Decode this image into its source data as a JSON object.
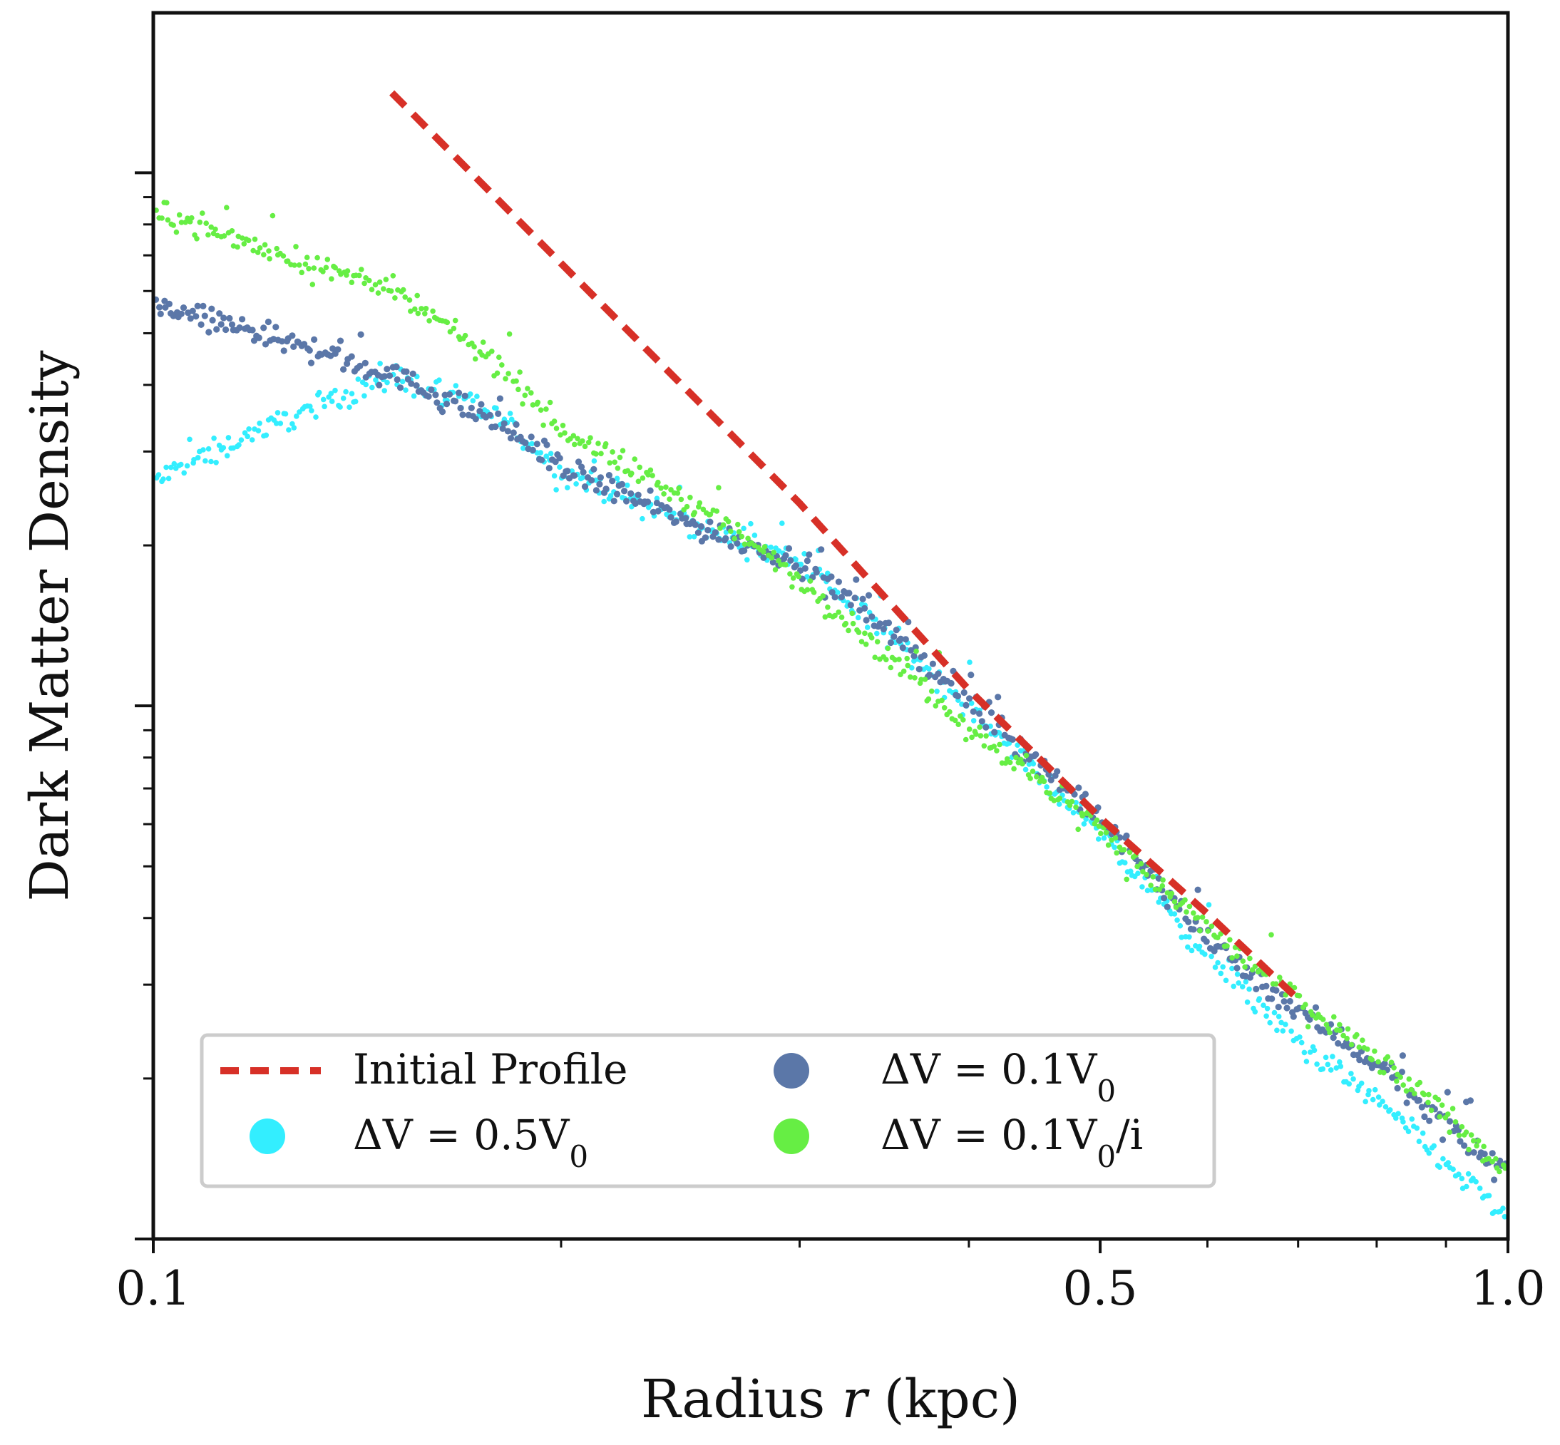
{
  "chart_data": {
    "type": "scatter",
    "title": "",
    "xlabel_text": "Radius ",
    "xlabel_var": "r",
    "xlabel_unit": " (kpc)",
    "ylabel": "Dark Matter Density",
    "x_scale": "log",
    "y_scale": "log",
    "xlim": [
      0.1,
      1.0
    ],
    "ylim_decades": [
      0,
      2.3
    ],
    "x_tick_labels": [
      {
        "value": 0.1,
        "label": "0.1"
      },
      {
        "value": 0.5,
        "label": "0.5"
      },
      {
        "value": 1.0,
        "label": "1.0"
      }
    ],
    "x_minor_ticks": [
      0.2,
      0.3,
      0.4,
      0.6,
      0.7,
      0.8,
      0.9
    ],
    "y_major_ticks_decades": [
      0,
      1,
      2
    ],
    "legend": {
      "position": "lower-left",
      "columns": 2
    },
    "series": [
      {
        "name": "Initial Profile",
        "kind": "dashed-line",
        "color": "#d73027",
        "x": [
          0.15,
          0.2,
          0.3,
          0.4,
          0.5,
          0.6,
          0.7
        ],
        "y_decades": [
          2.15,
          1.83,
          1.38,
          1.03,
          0.79,
          0.61,
          0.45
        ]
      },
      {
        "name": "ΔV = 0.5V₀",
        "label_parts": [
          "ΔV = 0.5V",
          "0",
          ""
        ],
        "kind": "scatter",
        "color": "#33eeff",
        "x": [
          0.1,
          0.12,
          0.15,
          0.18,
          0.2,
          0.25,
          0.3,
          0.35,
          0.4,
          0.5,
          0.6,
          0.7,
          0.8,
          0.9,
          1.0
        ],
        "y_decades": [
          1.42,
          1.52,
          1.62,
          1.54,
          1.44,
          1.34,
          1.27,
          1.13,
          1.0,
          0.76,
          0.53,
          0.37,
          0.26,
          0.14,
          0.04
        ]
      },
      {
        "name": "ΔV = 0.1V₀",
        "label_parts": [
          "ΔV = 0.1V",
          "0",
          ""
        ],
        "kind": "scatter",
        "color": "#5b77a8",
        "x": [
          0.1,
          0.12,
          0.15,
          0.18,
          0.2,
          0.25,
          0.3,
          0.35,
          0.4,
          0.5,
          0.6,
          0.7,
          0.8,
          0.9,
          1.0
        ],
        "y_decades": [
          1.75,
          1.7,
          1.62,
          1.53,
          1.45,
          1.34,
          1.27,
          1.14,
          1.01,
          0.79,
          0.56,
          0.43,
          0.33,
          0.21,
          0.12
        ]
      },
      {
        "name": "ΔV = 0.1V₀/i",
        "label_parts": [
          "ΔV = 0.1V",
          "0",
          "/i"
        ],
        "kind": "scatter",
        "color": "#66ee44",
        "x": [
          0.1,
          0.12,
          0.15,
          0.18,
          0.2,
          0.25,
          0.3,
          0.35,
          0.4,
          0.5,
          0.6,
          0.7,
          0.8,
          0.9,
          1.0
        ],
        "y_decades": [
          1.93,
          1.86,
          1.78,
          1.64,
          1.52,
          1.38,
          1.24,
          1.09,
          0.96,
          0.77,
          0.58,
          0.45,
          0.34,
          0.23,
          0.13
        ]
      }
    ]
  }
}
